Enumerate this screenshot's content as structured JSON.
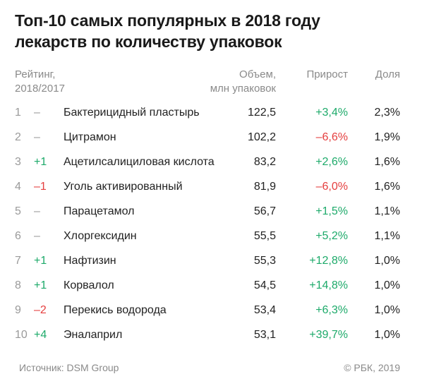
{
  "title_line1": "Топ-10 самых популярных в 2018 году",
  "title_line2": "лекарств по количеству упаковок",
  "headers": {
    "rank_line1": "Рейтинг,",
    "rank_line2": "2018/2017",
    "volume_line1": "Объем,",
    "volume_line2": "млн упаковок",
    "growth": "Прирост",
    "share": "Доля"
  },
  "colors": {
    "positive": "#1daa6a",
    "negative": "#e53e3e",
    "neutral": "#9a9a9a"
  },
  "chart_data": {
    "type": "table",
    "columns": [
      "Рейтинг, 2018/2017",
      "Объем, млн упаковок",
      "Прирост",
      "Доля"
    ],
    "rows": [
      {
        "rank": "1",
        "change": "–",
        "name": "Бактерицидный пластырь",
        "volume": "122,5",
        "growth": "+3,4%",
        "share": "2,3%"
      },
      {
        "rank": "2",
        "change": "–",
        "name": "Цитрамон",
        "volume": "102,2",
        "growth": "–6,6%",
        "share": "1,9%"
      },
      {
        "rank": "3",
        "change": "+1",
        "name": "Ацетилсалициловая кислота",
        "volume": "83,2",
        "growth": "+2,6%",
        "share": "1,6%"
      },
      {
        "rank": "4",
        "change": "–1",
        "name": "Уголь активированный",
        "volume": "81,9",
        "growth": "–6,0%",
        "share": "1,6%"
      },
      {
        "rank": "5",
        "change": "–",
        "name": "Парацетамол",
        "volume": "56,7",
        "growth": "+1,5%",
        "share": "1,1%"
      },
      {
        "rank": "6",
        "change": "–",
        "name": "Хлоргексидин",
        "volume": "55,5",
        "growth": "+5,2%",
        "share": "1,1%"
      },
      {
        "rank": "7",
        "change": "+1",
        "name": "Нафтизин",
        "volume": "55,3",
        "growth": "+12,8%",
        "share": "1,0%"
      },
      {
        "rank": "8",
        "change": "+1",
        "name": "Корвалол",
        "volume": "54,5",
        "growth": "+14,8%",
        "share": "1,0%"
      },
      {
        "rank": "9",
        "change": "–2",
        "name": "Перекись водорода",
        "volume": "53,4",
        "growth": "+6,3%",
        "share": "1,0%"
      },
      {
        "rank": "10",
        "change": "+4",
        "name": "Эналаприл",
        "volume": "53,1",
        "growth": "+39,7%",
        "share": "1,0%"
      }
    ]
  },
  "footer": {
    "source": "Источник: DSM Group",
    "copyright": "© РБК, 2019"
  }
}
